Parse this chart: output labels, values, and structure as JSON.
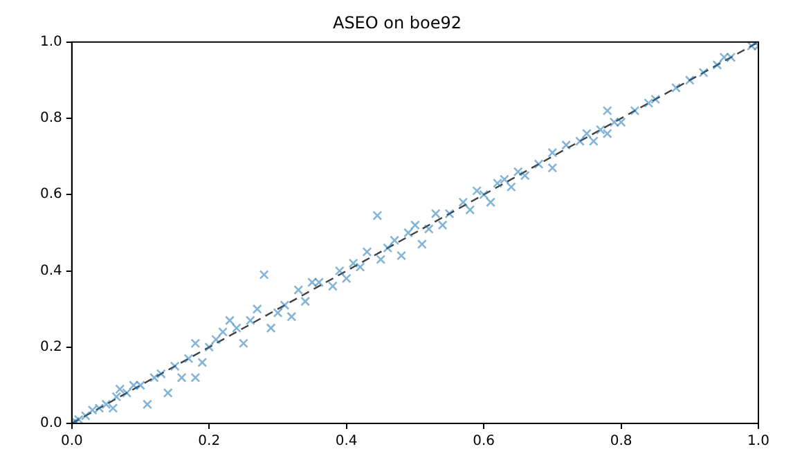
{
  "chart_data": {
    "type": "scatter",
    "title": "ASEO on boe92",
    "xlim": [
      0,
      1
    ],
    "ylim": [
      0,
      1
    ],
    "xticks": [
      {
        "value": 0,
        "label": "0.0"
      },
      {
        "value": 0.2,
        "label": "0.2"
      },
      {
        "value": 0.4,
        "label": "0.4"
      },
      {
        "value": 0.6,
        "label": "0.6"
      },
      {
        "value": 0.8,
        "label": "0.8"
      },
      {
        "value": 1,
        "label": "1.0"
      }
    ],
    "yticks": [
      {
        "value": 0,
        "label": "0.0"
      },
      {
        "value": 0.2,
        "label": "0.2"
      },
      {
        "value": 0.4,
        "label": "0.4"
      },
      {
        "value": 0.6,
        "label": "0.6"
      },
      {
        "value": 0.8,
        "label": "0.8"
      },
      {
        "value": 1,
        "label": "1.0"
      }
    ],
    "grid": false,
    "legend": false,
    "marker": "cross",
    "series": [
      {
        "color": "#1f77b4",
        "x": [
          0,
          0.005,
          0.01,
          0.02,
          0.03,
          0.04,
          0.05,
          0.06,
          0.065,
          0.07,
          0.08,
          0.09,
          0.1,
          0.11,
          0.12,
          0.13,
          0.14,
          0.15,
          0.16,
          0.17,
          0.18,
          0.18,
          0.19,
          0.2,
          0.21,
          0.22,
          0.23,
          0.24,
          0.25,
          0.26,
          0.27,
          0.28,
          0.29,
          0.3,
          0.31,
          0.32,
          0.33,
          0.34,
          0.35,
          0.36,
          0.38,
          0.39,
          0.4,
          0.41,
          0.42,
          0.43,
          0.445,
          0.45,
          0.46,
          0.47,
          0.48,
          0.49,
          0.5,
          0.51,
          0.52,
          0.53,
          0.54,
          0.55,
          0.57,
          0.58,
          0.59,
          0.6,
          0.61,
          0.62,
          0.63,
          0.64,
          0.65,
          0.66,
          0.68,
          0.7,
          0.7,
          0.72,
          0.74,
          0.75,
          0.76,
          0.77,
          0.78,
          0.78,
          0.79,
          0.8,
          0.82,
          0.84,
          0.85,
          0.88,
          0.9,
          0.92,
          0.94,
          0.95,
          0.96,
          0.99,
          1
        ],
        "values": [
          0,
          0.005,
          0.01,
          0.02,
          0.035,
          0.04,
          0.05,
          0.04,
          0.07,
          0.09,
          0.08,
          0.1,
          0.1,
          0.05,
          0.12,
          0.13,
          0.08,
          0.15,
          0.12,
          0.17,
          0.21,
          0.12,
          0.16,
          0.2,
          0.22,
          0.24,
          0.27,
          0.25,
          0.21,
          0.27,
          0.3,
          0.39,
          0.25,
          0.29,
          0.31,
          0.28,
          0.35,
          0.32,
          0.37,
          0.37,
          0.36,
          0.4,
          0.38,
          0.42,
          0.41,
          0.45,
          0.545,
          0.43,
          0.46,
          0.48,
          0.44,
          0.5,
          0.52,
          0.47,
          0.51,
          0.55,
          0.52,
          0.55,
          0.58,
          0.56,
          0.61,
          0.6,
          0.58,
          0.63,
          0.64,
          0.62,
          0.66,
          0.65,
          0.68,
          0.71,
          0.67,
          0.73,
          0.74,
          0.76,
          0.74,
          0.77,
          0.82,
          0.76,
          0.79,
          0.79,
          0.82,
          0.84,
          0.85,
          0.88,
          0.9,
          0.92,
          0.94,
          0.96,
          0.96,
          0.99,
          0.99
        ]
      },
      {
        "type": "line",
        "color": "#000000",
        "line_style": "dashed",
        "marker": "none",
        "x": [
          0,
          1
        ],
        "values": [
          0,
          1
        ]
      }
    ]
  }
}
